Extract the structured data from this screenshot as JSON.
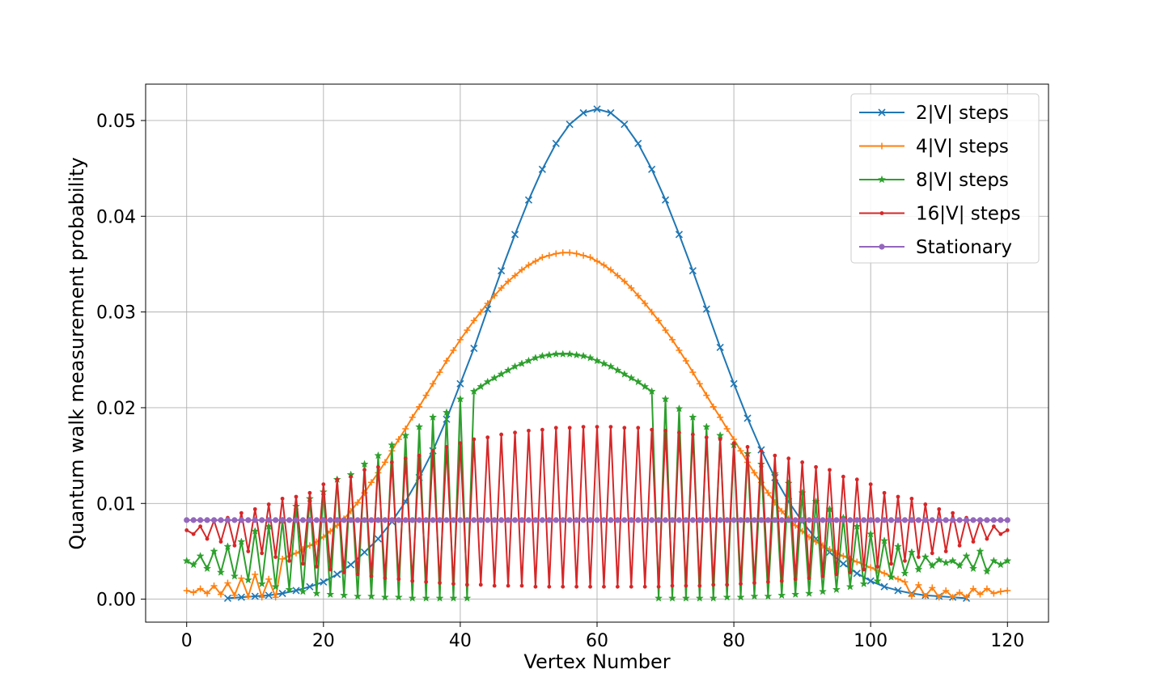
{
  "chart_data": {
    "type": "line",
    "title": "",
    "xlabel": "Vertex Number",
    "ylabel": "Quantum walk measurement probability",
    "xlim": [
      -6,
      126
    ],
    "ylim": [
      -0.0024,
      0.0538
    ],
    "xticks": [
      0,
      20,
      40,
      60,
      80,
      100,
      120
    ],
    "xtick_labels": [
      "0",
      "20",
      "40",
      "60",
      "80",
      "100",
      "120"
    ],
    "yticks": [
      0.0,
      0.01,
      0.02,
      0.03,
      0.04,
      0.05
    ],
    "ytick_labels": [
      "0.00",
      "0.01",
      "0.02",
      "0.03",
      "0.04",
      "0.05"
    ],
    "grid": true,
    "legend_position": "top-right",
    "legend": [
      "2|V| steps",
      "4|V| steps",
      "8|V| steps",
      "16|V| steps",
      "Stationary"
    ],
    "x": [
      0,
      1,
      2,
      3,
      4,
      5,
      6,
      7,
      8,
      9,
      10,
      11,
      12,
      13,
      14,
      15,
      16,
      17,
      18,
      19,
      20,
      21,
      22,
      23,
      24,
      25,
      26,
      27,
      28,
      29,
      30,
      31,
      32,
      33,
      34,
      35,
      36,
      37,
      38,
      39,
      40,
      41,
      42,
      43,
      44,
      45,
      46,
      47,
      48,
      49,
      50,
      51,
      52,
      53,
      54,
      55,
      56,
      57,
      58,
      59,
      60,
      61,
      62,
      63,
      64,
      65,
      66,
      67,
      68,
      69,
      70,
      71,
      72,
      73,
      74,
      75,
      76,
      77,
      78,
      79,
      80,
      81,
      82,
      83,
      84,
      85,
      86,
      87,
      88,
      89,
      90,
      91,
      92,
      93,
      94,
      95,
      96,
      97,
      98,
      99,
      100,
      101,
      102,
      103,
      104,
      105,
      106,
      107,
      108,
      109,
      110,
      111,
      112,
      113,
      114,
      115,
      116,
      117,
      118,
      119,
      120
    ],
    "series": [
      {
        "name": "2|V| steps",
        "color": "#1f77b4",
        "marker": "x",
        "values": [
          null,
          null,
          null,
          null,
          null,
          null,
          0.0001,
          null,
          0.0002,
          null,
          0.0003,
          null,
          0.0004,
          null,
          0.0006,
          null,
          0.0009,
          null,
          0.0013,
          null,
          0.0018,
          null,
          0.0026,
          null,
          0.0036,
          null,
          0.0049,
          null,
          0.0063,
          null,
          0.0081,
          null,
          0.0102,
          null,
          0.0127,
          null,
          0.0155,
          null,
          0.0188,
          null,
          0.0225,
          null,
          0.0262,
          null,
          0.0303,
          null,
          0.0343,
          null,
          0.0381,
          null,
          0.0417,
          null,
          0.0449,
          null,
          0.0476,
          null,
          0.0496,
          null,
          0.0508,
          null,
          0.0512,
          null,
          0.0508,
          null,
          0.0496,
          null,
          0.0476,
          null,
          0.0449,
          null,
          0.0417,
          null,
          0.0381,
          null,
          0.0343,
          null,
          0.0303,
          null,
          0.0263,
          null,
          0.0225,
          null,
          0.0189,
          null,
          0.0156,
          null,
          0.0127,
          null,
          0.0102,
          null,
          0.0081,
          null,
          0.0063,
          null,
          0.0049,
          null,
          0.0037,
          null,
          0.0027,
          null,
          0.0019,
          null,
          0.0013,
          null,
          0.0009,
          null,
          0.0006,
          null,
          0.0004,
          null,
          0.0003,
          null,
          0.0002,
          null,
          0.0001,
          null,
          null,
          null,
          null,
          null,
          null
        ]
      },
      {
        "name": "4|V| steps",
        "color": "#ff7f0e",
        "marker": "+",
        "values": [
          0.0009,
          0.0007,
          0.0011,
          0.0006,
          0.0014,
          0.0005,
          0.0017,
          0.0004,
          0.0022,
          0.0003,
          0.0026,
          0.0002,
          0.0021,
          0.0002,
          0.0042,
          0.0045,
          0.0048,
          0.0052,
          0.0056,
          0.006,
          0.0065,
          0.0071,
          0.0077,
          0.0084,
          0.0092,
          0.0101,
          0.0111,
          0.0122,
          0.0132,
          0.0143,
          0.0155,
          0.0167,
          0.0178,
          0.019,
          0.0201,
          0.0213,
          0.0225,
          0.0237,
          0.0249,
          0.026,
          0.0271,
          0.0281,
          0.0291,
          0.03,
          0.0309,
          0.0317,
          0.0325,
          0.0332,
          0.0338,
          0.0344,
          0.0349,
          0.0353,
          0.0357,
          0.0359,
          0.0361,
          0.0362,
          0.0362,
          0.0361,
          0.0359,
          0.0357,
          0.0353,
          0.0349,
          0.0344,
          0.0338,
          0.0332,
          0.0325,
          0.0317,
          0.0309,
          0.03,
          0.0291,
          0.0281,
          0.0271,
          0.026,
          0.0249,
          0.0237,
          0.0225,
          0.0213,
          0.0201,
          0.019,
          0.0178,
          0.0167,
          0.0155,
          0.0143,
          0.0132,
          0.0122,
          0.0111,
          0.0101,
          0.0092,
          0.0084,
          0.0077,
          0.0071,
          0.0065,
          0.006,
          0.0056,
          0.0052,
          0.0048,
          0.0045,
          0.0042,
          0.0039,
          0.0036,
          0.0033,
          0.003,
          0.0027,
          0.0024,
          0.0021,
          0.0018,
          0.0003,
          0.0015,
          0.0003,
          0.0012,
          0.0002,
          0.0009,
          0.0002,
          0.0007,
          0.0002,
          0.0011,
          0.0005,
          0.0011,
          0.0006,
          0.0008,
          0.0009
        ]
      },
      {
        "name": "8|V| steps",
        "color": "#2ca02c",
        "marker": "*",
        "values": [
          0.004,
          0.0036,
          0.0045,
          0.0032,
          0.005,
          0.0028,
          0.0055,
          0.0024,
          0.006,
          0.002,
          0.0071,
          0.0016,
          0.0076,
          0.0013,
          0.0082,
          0.001,
          0.0097,
          0.0008,
          0.0105,
          0.0006,
          0.0112,
          0.0005,
          0.0125,
          0.0004,
          0.013,
          0.0003,
          0.0141,
          0.0003,
          0.015,
          0.0002,
          0.0161,
          0.0002,
          0.0171,
          0.0001,
          0.018,
          0.0001,
          0.019,
          0.0001,
          0.0195,
          0.0001,
          0.0209,
          0.0001,
          0.0217,
          0.0222,
          0.0227,
          0.0231,
          0.0235,
          0.0239,
          0.0243,
          0.0246,
          0.0249,
          0.0252,
          0.0254,
          0.0255,
          0.0256,
          0.0256,
          0.0256,
          0.0255,
          0.0254,
          0.0252,
          0.0249,
          0.0246,
          0.0243,
          0.0239,
          0.0235,
          0.0231,
          0.0227,
          0.0222,
          0.0217,
          0.0001,
          0.0209,
          0.0001,
          0.0199,
          0.0001,
          0.019,
          0.0001,
          0.018,
          0.0001,
          0.0171,
          0.0002,
          0.0161,
          0.0002,
          0.0152,
          0.0003,
          0.0141,
          0.0003,
          0.0131,
          0.0004,
          0.0121,
          0.0005,
          0.0111,
          0.0006,
          0.0102,
          0.0008,
          0.0094,
          0.001,
          0.0085,
          0.0013,
          0.0076,
          0.0016,
          0.0068,
          0.0019,
          0.0061,
          0.0023,
          0.0055,
          0.0027,
          0.0049,
          0.0031,
          0.0044,
          0.0035,
          0.0041,
          0.0038,
          0.004,
          0.0035,
          0.0045,
          0.0032,
          0.005,
          0.0029,
          0.004,
          0.0036,
          0.004
        ]
      },
      {
        "name": "16|V| steps",
        "color": "#d62728",
        "marker": ".",
        "values": [
          0.0072,
          0.0068,
          0.0076,
          0.0063,
          0.0082,
          0.006,
          0.0085,
          0.0056,
          0.009,
          0.005,
          0.0094,
          0.0048,
          0.0099,
          0.0044,
          0.0105,
          0.004,
          0.0107,
          0.0037,
          0.0111,
          0.0034,
          0.012,
          0.0031,
          0.0125,
          0.0028,
          0.0128,
          0.0026,
          0.0135,
          0.0024,
          0.0138,
          0.0022,
          0.0143,
          0.0021,
          0.0147,
          0.0019,
          0.015,
          0.0018,
          0.0155,
          0.0017,
          0.0159,
          0.0016,
          0.0163,
          0.0015,
          0.0167,
          0.0015,
          0.0169,
          0.0014,
          0.0172,
          0.0014,
          0.0174,
          0.0014,
          0.0176,
          0.0013,
          0.0177,
          0.0013,
          0.0179,
          0.0013,
          0.0179,
          0.0013,
          0.018,
          0.0013,
          0.018,
          0.0013,
          0.018,
          0.0013,
          0.0179,
          0.0013,
          0.0179,
          0.0013,
          0.0177,
          0.0013,
          0.0176,
          0.0014,
          0.0174,
          0.0014,
          0.0172,
          0.0014,
          0.0169,
          0.0015,
          0.0167,
          0.0015,
          0.0163,
          0.0016,
          0.0159,
          0.0017,
          0.0155,
          0.0018,
          0.015,
          0.0019,
          0.0147,
          0.0021,
          0.0143,
          0.0022,
          0.0138,
          0.0024,
          0.0135,
          0.0026,
          0.0128,
          0.0028,
          0.0125,
          0.0031,
          0.012,
          0.0034,
          0.0111,
          0.0037,
          0.0107,
          0.004,
          0.0105,
          0.0044,
          0.0099,
          0.0048,
          0.0094,
          0.005,
          0.009,
          0.0056,
          0.0085,
          0.006,
          0.0082,
          0.0063,
          0.0076,
          0.0068,
          0.0072
        ]
      },
      {
        "name": "Stationary",
        "color": "#9467bd",
        "marker": "o",
        "constant": 0.00826
      }
    ]
  }
}
